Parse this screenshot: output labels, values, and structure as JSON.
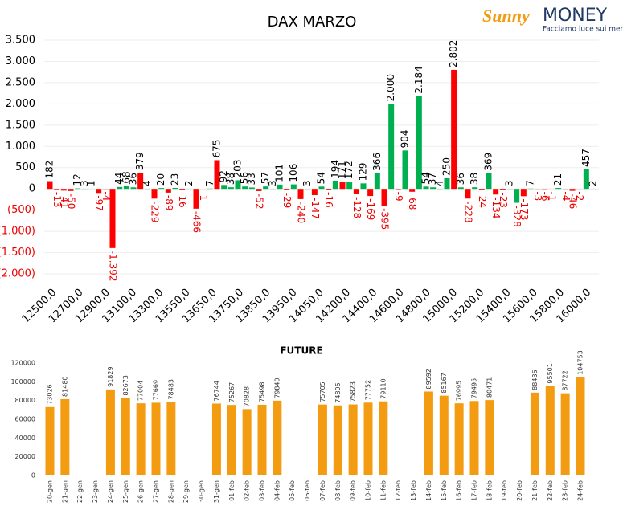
{
  "logo": {
    "name1": "Sunny",
    "name2": "MONEY",
    "tagline": "Facciamo luce sui mercati"
  },
  "chart_data": [
    {
      "type": "bar",
      "title": "DAX MARZO",
      "x_labels": [
        "12500,0",
        "12700,0",
        "12900,0",
        "13100,0",
        "13300,0",
        "13550,0",
        "13650,0",
        "13750,0",
        "13850,0",
        "13950,0",
        "14050,0",
        "14200,0",
        "14400,0",
        "14600,0",
        "14800,0",
        "15000,0",
        "15200,0",
        "15400,0",
        "15600,0",
        "15800,0",
        "16000,0"
      ],
      "values": [
        182,
        -13,
        -41,
        -50,
        12,
        3,
        1,
        -97,
        -4,
        -1392,
        44,
        68,
        36,
        379,
        4,
        -229,
        20,
        -89,
        23,
        -16,
        2,
        -466,
        -1,
        7,
        675,
        92,
        38,
        203,
        56,
        33,
        -52,
        57,
        3,
        101,
        -29,
        106,
        -240,
        3,
        -147,
        54,
        -16,
        194,
        171,
        172,
        -128,
        129,
        -169,
        366,
        -395,
        2000,
        -9,
        904,
        -68,
        2184,
        54,
        37,
        4,
        250,
        2802,
        36,
        -228,
        38,
        -24,
        369,
        -134,
        -23,
        3,
        -328,
        -173,
        7,
        -3,
        -6,
        -1,
        21,
        -4,
        -46,
        -2,
        457,
        2
      ],
      "value_labels": [
        "182",
        "-13",
        "-41",
        "-50",
        "12",
        "3",
        "1",
        "-97",
        "-4",
        "-1.392",
        "44",
        "68",
        "36",
        "379",
        "4",
        "-229",
        "20",
        "-89",
        "23",
        "-16",
        "2",
        "-466",
        "-1",
        "7",
        "675",
        "92",
        "38",
        "203",
        "56",
        "33",
        "-52",
        "57",
        "3",
        "101",
        "-29",
        "106",
        "-240",
        "3",
        "-147",
        "54",
        "-16",
        "194",
        "171",
        "172",
        "-128",
        "129",
        "-169",
        "366",
        "-395",
        "2.000",
        "-9",
        "904",
        "-68",
        "2.184",
        "54",
        "37",
        "4",
        "250",
        "2.802",
        "36",
        "-228",
        "38",
        "-24",
        "369",
        "-134",
        "-23",
        "3",
        "-328",
        "-173",
        "7",
        "-3",
        "-6",
        "-1",
        "21",
        "-4",
        "-46",
        "-2",
        "457",
        "2"
      ],
      "colors": {
        "up": "#00b050",
        "down": "#ff0000"
      },
      "red_up": [
        0,
        13,
        24,
        42,
        58
      ],
      "green_down": [
        67
      ],
      "ylim": [
        -2000,
        3500
      ],
      "yticks": [
        {
          "value": -2000,
          "label": "(2.000)"
        },
        {
          "value": -1500,
          "label": "(1.500)"
        },
        {
          "value": -1000,
          "label": "(1.000)"
        },
        {
          "value": -500,
          "label": "(500)"
        },
        0,
        500,
        {
          "value": 1000,
          "label": "1.000"
        },
        {
          "value": 1500,
          "label": "1.500"
        },
        {
          "value": 2000,
          "label": "2.000"
        },
        {
          "value": 2500,
          "label": "2.500"
        },
        {
          "value": 3000,
          "label": "3.000"
        },
        {
          "value": 3500,
          "label": "3.500"
        }
      ],
      "grid": true
    },
    {
      "type": "bar",
      "title": "FUTURE",
      "color": "#f39c12",
      "categories": [
        "20-gen",
        "21-gen",
        "22-gen",
        "23-gen",
        "24-gen",
        "25-gen",
        "26-gen",
        "27-gen",
        "28-gen",
        "29-gen",
        "30-gen",
        "31-gen",
        "01-feb",
        "02-feb",
        "03-feb",
        "04-feb",
        "05-feb",
        "06-feb",
        "07-feb",
        "08-feb",
        "09-feb",
        "10-feb",
        "11-feb",
        "12-feb",
        "13-feb",
        "14-feb",
        "15-feb",
        "16-feb",
        "17-feb",
        "18-feb",
        "19-feb",
        "20-feb",
        "21-feb",
        "22-feb",
        "23-feb",
        "24-feb"
      ],
      "values": [
        73026,
        81480,
        null,
        null,
        91829,
        82673,
        77004,
        77669,
        78483,
        null,
        null,
        76744,
        75267,
        70828,
        75498,
        79840,
        null,
        null,
        75705,
        74805,
        75823,
        77752,
        79110,
        null,
        null,
        89592,
        85167,
        76995,
        79495,
        80471,
        null,
        null,
        88436,
        95501,
        87722,
        104753
      ],
      "ylim": [
        0,
        120000
      ],
      "yticks": [
        0,
        20000,
        40000,
        60000,
        80000,
        100000,
        120000
      ],
      "grid": false
    }
  ]
}
